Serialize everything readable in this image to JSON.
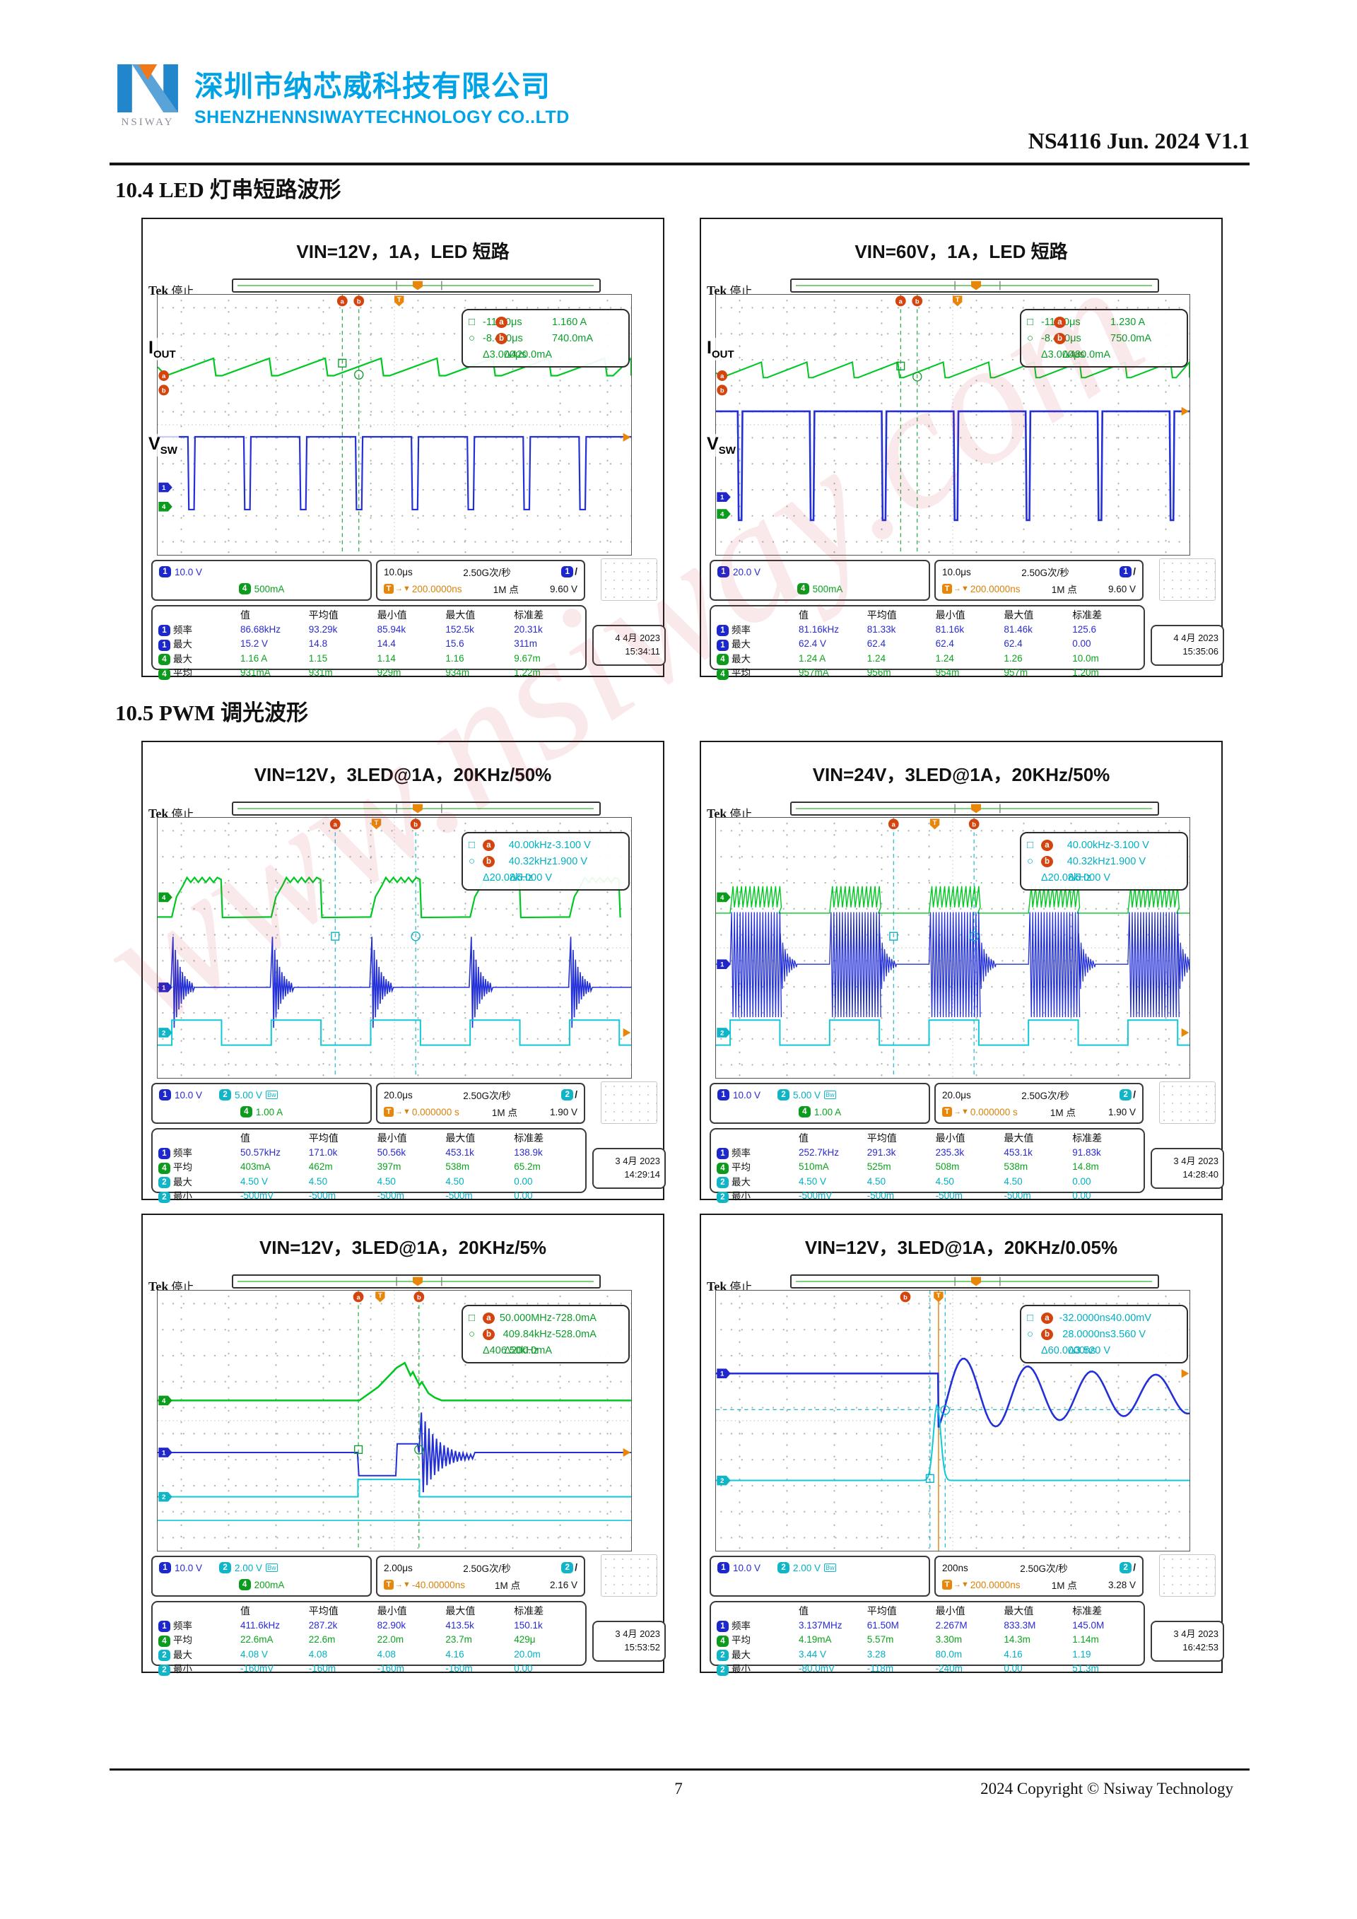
{
  "page": {
    "header": {
      "logo_brand": "NSIWAY",
      "company_cn": "深圳市纳芯威科技有限公司",
      "company_en": "SHENZHENNSIWAYTECHNOLOGY CO..LTD",
      "doc_ref": "NS4116 Jun. 2024 V1.1"
    },
    "sections": [
      {
        "heading": "10.4 LED 灯串短路波形"
      },
      {
        "heading": "10.5 PWM 调光波形"
      }
    ],
    "watermark": "www.nsiway.com",
    "footer": {
      "page_number": "7",
      "copyright": "2024 Copyright © Nsiway Technology"
    }
  },
  "glyphs": {
    "trigger_t": "T",
    "trigger_arrow": "→▼"
  },
  "scopes": [
    {
      "title": "VIN=12V，1A，LED 短路",
      "tek_brand": "Tek",
      "tek_status": "停止",
      "side_labels": [
        {
          "main": "I",
          "sub": "OUT"
        },
        {
          "main": "V",
          "sub": "SW"
        }
      ],
      "cursor_box": {
        "color": "green",
        "rows": [
          {
            "marker": "□",
            "badge_left": "",
            "left": "-11.40μs",
            "badge_mid": "a",
            "right": "1.160 A"
          },
          {
            "marker": "○",
            "badge_left": "",
            "left": "-8.400μs",
            "badge_mid": "b",
            "right": "740.0mA"
          },
          {
            "marker": "",
            "badge_left": "",
            "left": "Δ3.000μs",
            "badge_mid": "",
            "right": "Δ420.0mA"
          }
        ]
      },
      "settings": {
        "ch1_n": "1",
        "ch1": "10.0 V",
        "ch2_n": "2",
        "ch2": "",
        "ch2_bw": "",
        "ch4_n": "4",
        "ch4": "500mA",
        "timebase": "10.0μs",
        "rate": "2.50G次/秒",
        "trig_ch_n": "1",
        "trig_slope": "/",
        "trig_pos": "200.0000ns",
        "points": "1M 点",
        "trig_level": "9.60 V"
      },
      "table": {
        "headers": [
          "值",
          "平均值",
          "最小值",
          "最大值",
          "标准差"
        ],
        "rows": [
          {
            "ch": "1",
            "label": "频率",
            "values": [
              "86.68kHz",
              "93.29k",
              "85.94k",
              "152.5k",
              "20.31k"
            ]
          },
          {
            "ch": "1",
            "label": "最大",
            "values": [
              "15.2 V",
              "14.8",
              "14.4",
              "15.6",
              "311m"
            ]
          },
          {
            "ch": "4",
            "label": "最大",
            "values": [
              "1.16 A",
              "1.15",
              "1.14",
              "1.16",
              "9.67m"
            ]
          },
          {
            "ch": "4",
            "label": "平均",
            "values": [
              "931mA",
              "931m",
              "929m",
              "934m",
              "1.22m"
            ]
          }
        ]
      },
      "timestamp": [
        "4 4月 2023",
        "15:34:11"
      ],
      "waveforms": [
        {
          "name": "iout-current-ripple",
          "shape": "sawtooth",
          "color": "#00c822",
          "width": 2.2
        },
        {
          "name": "vsw-switching-pulses",
          "shape": "pulse_train",
          "color": "#2330d8",
          "width": 2.2
        }
      ]
    },
    {
      "title": "VIN=60V，1A，LED 短路",
      "tek_brand": "Tek",
      "tek_status": "停止",
      "side_labels": [
        {
          "main": "I",
          "sub": "OUT"
        },
        {
          "main": "V",
          "sub": "SW"
        }
      ],
      "cursor_box": {
        "color": "green",
        "rows": [
          {
            "marker": "□",
            "badge_left": "",
            "left": "-11.40μs",
            "badge_mid": "a",
            "right": "1.230 A"
          },
          {
            "marker": "○",
            "badge_left": "",
            "left": "-8.400μs",
            "badge_mid": "b",
            "right": "750.0mA"
          },
          {
            "marker": "",
            "badge_left": "",
            "left": "Δ3.000μs",
            "badge_mid": "",
            "right": "Δ480.0mA"
          }
        ]
      },
      "settings": {
        "ch1_n": "1",
        "ch1": "20.0 V",
        "ch2_n": "2",
        "ch2": "",
        "ch2_bw": "",
        "ch4_n": "4",
        "ch4": "500mA",
        "timebase": "10.0μs",
        "rate": "2.50G次/秒",
        "trig_ch_n": "1",
        "trig_slope": "/",
        "trig_pos": "200.0000ns",
        "points": "1M 点",
        "trig_level": "9.60 V"
      },
      "table": {
        "headers": [
          "值",
          "平均值",
          "最小值",
          "最大值",
          "标准差"
        ],
        "rows": [
          {
            "ch": "1",
            "label": "频率",
            "values": [
              "81.16kHz",
              "81.33k",
              "81.16k",
              "81.46k",
              "125.6"
            ]
          },
          {
            "ch": "1",
            "label": "最大",
            "values": [
              "62.4 V",
              "62.4",
              "62.4",
              "62.4",
              "0.00"
            ]
          },
          {
            "ch": "4",
            "label": "最大",
            "values": [
              "1.24 A",
              "1.24",
              "1.24",
              "1.26",
              "10.0m"
            ]
          },
          {
            "ch": "4",
            "label": "平均",
            "values": [
              "957mA",
              "956m",
              "954m",
              "957m",
              "1.20m"
            ]
          }
        ]
      },
      "timestamp": [
        "4 4月 2023",
        "15:35:06"
      ],
      "waveforms": [
        {
          "name": "iout-current-ripple",
          "shape": "sawtooth2",
          "color": "#00c822",
          "width": 2
        },
        {
          "name": "vsw-switching-pulses",
          "shape": "pulse_train2",
          "color": "#2330d8",
          "width": 2.6
        }
      ]
    },
    {
      "title": "VIN=12V，3LED@1A，20KHz/50%",
      "tek_brand": "Tek",
      "tek_status": "停止",
      "cursor_box": {
        "color": "cyan",
        "rows": [
          {
            "marker": "□",
            "badge_left": "a",
            "left": "40.00kHz",
            "badge_mid": "",
            "right": "-3.100 V"
          },
          {
            "marker": "○",
            "badge_left": "b",
            "left": "40.32kHz",
            "badge_mid": "",
            "right": "1.900 V"
          },
          {
            "marker": "",
            "badge_left": "",
            "left": "Δ20.08kHz",
            "badge_mid": "",
            "right": "Δ5.000 V"
          }
        ]
      },
      "settings": {
        "ch1_n": "1",
        "ch1": "10.0 V",
        "ch2_n": "2",
        "ch2": "5.00 V",
        "ch2_bw": "Bw",
        "ch4_n": "4",
        "ch4": "1.00 A",
        "timebase": "20.0μs",
        "rate": "2.50G次/秒",
        "trig_ch_n": "2",
        "trig_slope": "/",
        "trig_pos": "0.000000 s",
        "points": "1M 点",
        "trig_level": "1.90 V"
      },
      "table": {
        "headers": [
          "值",
          "平均值",
          "最小值",
          "最大值",
          "标准差"
        ],
        "rows": [
          {
            "ch": "1",
            "label": "频率",
            "values": [
              "50.57kHz",
              "171.0k",
              "50.56k",
              "453.1k",
              "138.9k"
            ]
          },
          {
            "ch": "4",
            "label": "平均",
            "values": [
              "403mA",
              "462m",
              "397m",
              "538m",
              "65.2m"
            ]
          },
          {
            "ch": "2",
            "label": "最大",
            "values": [
              "4.50 V",
              "4.50",
              "4.50",
              "4.50",
              "0.00"
            ]
          },
          {
            "ch": "2",
            "label": "最小",
            "values": [
              "-500mV",
              "-500m",
              "-500m",
              "-500m",
              "0.00"
            ]
          }
        ]
      },
      "timestamp": [
        "3 4月 2023",
        "14:29:14"
      ],
      "waveforms": [
        {
          "name": "led-current-pwm-envelope",
          "shape": "pwm_envelope",
          "color": "#00c822",
          "width": 2.2
        },
        {
          "name": "vsw-ringing-bursts",
          "shape": "ring_bursts",
          "color": "#2330d8",
          "width": 1.6
        },
        {
          "name": "pwm-gate-square",
          "shape": "square_wave",
          "color": "#10c8d8",
          "width": 2
        }
      ]
    },
    {
      "title": "VIN=24V，3LED@1A，20KHz/50%",
      "tek_brand": "Tek",
      "tek_status": "停止",
      "cursor_box": {
        "color": "cyan",
        "rows": [
          {
            "marker": "□",
            "badge_left": "a",
            "left": "40.00kHz",
            "badge_mid": "",
            "right": "-3.100 V"
          },
          {
            "marker": "○",
            "badge_left": "b",
            "left": "40.32kHz",
            "badge_mid": "",
            "right": "1.900 V"
          },
          {
            "marker": "",
            "badge_left": "",
            "left": "Δ20.08kHz",
            "badge_mid": "",
            "right": "Δ5.000 V"
          }
        ]
      },
      "settings": {
        "ch1_n": "1",
        "ch1": "10.0 V",
        "ch2_n": "2",
        "ch2": "5.00 V",
        "ch2_bw": "Bw",
        "ch4_n": "4",
        "ch4": "1.00 A",
        "timebase": "20.0μs",
        "rate": "2.50G次/秒",
        "trig_ch_n": "2",
        "trig_slope": "/",
        "trig_pos": "0.000000 s",
        "points": "1M 点",
        "trig_level": "1.90 V"
      },
      "table": {
        "headers": [
          "值",
          "平均值",
          "最小值",
          "最大值",
          "标准差"
        ],
        "rows": [
          {
            "ch": "1",
            "label": "频率",
            "values": [
              "252.7kHz",
              "291.3k",
              "235.3k",
              "453.1k",
              "91.83k"
            ]
          },
          {
            "ch": "4",
            "label": "平均",
            "values": [
              "510mA",
              "525m",
              "508m",
              "538m",
              "14.8m"
            ]
          },
          {
            "ch": "2",
            "label": "最大",
            "values": [
              "4.50 V",
              "4.50",
              "4.50",
              "4.50",
              "0.00"
            ]
          },
          {
            "ch": "2",
            "label": "最小",
            "values": [
              "-500mV",
              "-500m",
              "-500m",
              "-500m",
              "0.00"
            ]
          }
        ]
      },
      "timestamp": [
        "3 4月 2023",
        "14:28:40"
      ],
      "waveforms": [
        {
          "name": "led-current-hf-bursts",
          "shape": "hf_bursts",
          "color": "#00c822",
          "width": 1.4
        },
        {
          "name": "vsw-dense-oscillation",
          "shape": "dense_bursts",
          "color": "#2330d8",
          "width": 1.3
        },
        {
          "name": "pwm-gate-square",
          "shape": "square_wave",
          "color": "#10c8d8",
          "width": 2
        }
      ]
    },
    {
      "title": "VIN=12V，3LED@1A，20KHz/5%",
      "tek_brand": "Tek",
      "tek_status": "停止",
      "cursor_box": {
        "color": "green",
        "rows": [
          {
            "marker": "□",
            "badge_left": "a",
            "left": "50.000MHz",
            "badge_mid": "",
            "right": "-728.0mA"
          },
          {
            "marker": "○",
            "badge_left": "b",
            "left": "409.84kHz",
            "badge_mid": "",
            "right": "-528.0mA"
          },
          {
            "marker": "",
            "badge_left": "",
            "left": "Δ406.50kHz",
            "badge_mid": "",
            "right": "Δ200.0mA"
          }
        ]
      },
      "settings": {
        "ch1_n": "1",
        "ch1": "10.0 V",
        "ch2_n": "2",
        "ch2": "2.00 V",
        "ch2_bw": "Bw",
        "ch4_n": "4",
        "ch4": "200mA",
        "timebase": "2.00μs",
        "rate": "2.50G次/秒",
        "trig_ch_n": "2",
        "trig_slope": "/",
        "trig_pos": "-40.00000ns",
        "points": "1M 点",
        "trig_level": "2.16 V"
      },
      "table": {
        "headers": [
          "值",
          "平均值",
          "最小值",
          "最大值",
          "标准差"
        ],
        "rows": [
          {
            "ch": "1",
            "label": "频率",
            "values": [
              "411.6kHz",
              "287.2k",
              "82.90k",
              "413.5k",
              "150.1k"
            ]
          },
          {
            "ch": "4",
            "label": "平均",
            "values": [
              "22.6mA",
              "22.6m",
              "22.0m",
              "23.7m",
              "429μ"
            ]
          },
          {
            "ch": "2",
            "label": "最大",
            "values": [
              "4.08 V",
              "4.08",
              "4.08",
              "4.16",
              "20.0m"
            ]
          },
          {
            "ch": "2",
            "label": "最小",
            "values": [
              "-160mV",
              "-160m",
              "-160m",
              "-160m",
              "0.00"
            ]
          }
        ]
      },
      "timestamp": [
        "3 4月 2023",
        "15:53:52"
      ],
      "waveforms": [
        {
          "name": "led-current-pulse-hump",
          "shape": "flat_hump",
          "color": "#00c822",
          "width": 2.6
        },
        {
          "name": "vsw-step-and-ringing",
          "shape": "step_ring",
          "color": "#2330d8",
          "width": 2
        },
        {
          "name": "pwm-gate-pulse",
          "shape": "gate_pulse",
          "color": "#10c8d8",
          "width": 2
        },
        {
          "name": "reference-flat-trace",
          "shape": "flat_low",
          "color": "#10c8d8",
          "width": 1.6
        }
      ]
    },
    {
      "title": "VIN=12V，3LED@1A，20KHz/0.05%",
      "tek_brand": "Tek",
      "tek_status": "停止",
      "cursor_box": {
        "color": "cyan",
        "rows": [
          {
            "marker": "□",
            "badge_left": "a",
            "left": "-32.0000ns",
            "badge_mid": "",
            "right": "40.00mV"
          },
          {
            "marker": "○",
            "badge_left": "b",
            "left": "28.0000ns",
            "badge_mid": "",
            "right": "3.560 V"
          },
          {
            "marker": "",
            "badge_left": "",
            "left": "Δ60.0000ns",
            "badge_mid": "",
            "right": "Δ3.520 V"
          }
        ]
      },
      "settings": {
        "ch1_n": "1",
        "ch1": "10.0 V",
        "ch2_n": "2",
        "ch2": "2.00 V",
        "ch2_bw": "Bw",
        "ch4_n": "4",
        "ch4": "",
        "timebase": "200ns",
        "rate": "2.50G次/秒",
        "trig_ch_n": "2",
        "trig_slope": "/",
        "trig_pos": "200.0000ns",
        "points": "1M 点",
        "trig_level": "3.28 V"
      },
      "table": {
        "headers": [
          "值",
          "平均值",
          "最小值",
          "最大值",
          "标准差"
        ],
        "rows": [
          {
            "ch": "1",
            "label": "频率",
            "values": [
              "3.137MHz",
              "61.50M",
              "2.267M",
              "833.3M",
              "145.0M"
            ]
          },
          {
            "ch": "4",
            "label": "平均",
            "values": [
              "4.19mA",
              "5.57m",
              "3.30m",
              "14.3m",
              "1.14m"
            ]
          },
          {
            "ch": "2",
            "label": "最大",
            "values": [
              "3.44 V",
              "3.28",
              "80.0m",
              "4.16",
              "1.19"
            ]
          },
          {
            "ch": "2",
            "label": "最小",
            "values": [
              "-80.0mV",
              "-118m",
              "-240m",
              "0.00",
              "51.3m"
            ]
          }
        ]
      },
      "timestamp": [
        "3 4月 2023",
        "16:42:53"
      ],
      "waveforms": [
        {
          "name": "vsw-damped-oscillation",
          "shape": "damped_sine",
          "color": "#2330d8",
          "width": 2.6
        },
        {
          "name": "gate-narrow-spike",
          "shape": "spike",
          "color": "#10c8d8",
          "width": 2
        }
      ]
    }
  ]
}
